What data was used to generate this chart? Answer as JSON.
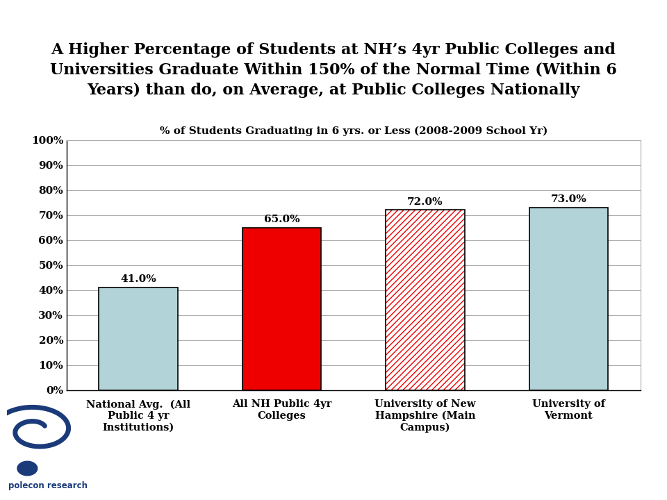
{
  "title": "A Higher Percentage of Students at NH’s 4yr Public Colleges and\nUniversities Graduate Within 150% of the Normal Time (Within 6\nYears) than do, on Average, at Public Colleges Nationally",
  "chart_title": "% of Students Graduating in 6 yrs. or Less (2008-2009 School Yr)",
  "categories": [
    "National Avg.  (All\nPublic 4 yr\nInstitutions)",
    "All NH Public 4yr\nColleges",
    "University of New\nHampshire (Main\nCampus)",
    "University of\nVermont"
  ],
  "values": [
    0.41,
    0.65,
    0.72,
    0.73
  ],
  "value_labels": [
    "41.0%",
    "65.0%",
    "72.0%",
    "73.0%"
  ],
  "bar_colors": [
    "#b2d3d8",
    "#ee0000",
    "#ee0000",
    "#b2d3d8"
  ],
  "bar_hatches": [
    null,
    null,
    "////",
    null
  ],
  "hatch_color": [
    "none",
    "none",
    "#ee0000",
    "none"
  ],
  "title_bg_color": "#d9d9d9",
  "title_fontsize": 16,
  "chart_title_fontsize": 11,
  "ytick_labels": [
    "0%",
    "10%",
    "20%",
    "30%",
    "40%",
    "50%",
    "60%",
    "70%",
    "80%",
    "90%",
    "100%"
  ],
  "ytick_values": [
    0,
    0.1,
    0.2,
    0.3,
    0.4,
    0.5,
    0.6,
    0.7,
    0.8,
    0.9,
    1.0
  ],
  "ylim": [
    0,
    1.0
  ],
  "grid_color": "#aaaaaa",
  "bar_edge_color": "#000000",
  "value_label_fontsize": 11,
  "background_color": "#ffffff",
  "logo_color": "#1a3a7a"
}
